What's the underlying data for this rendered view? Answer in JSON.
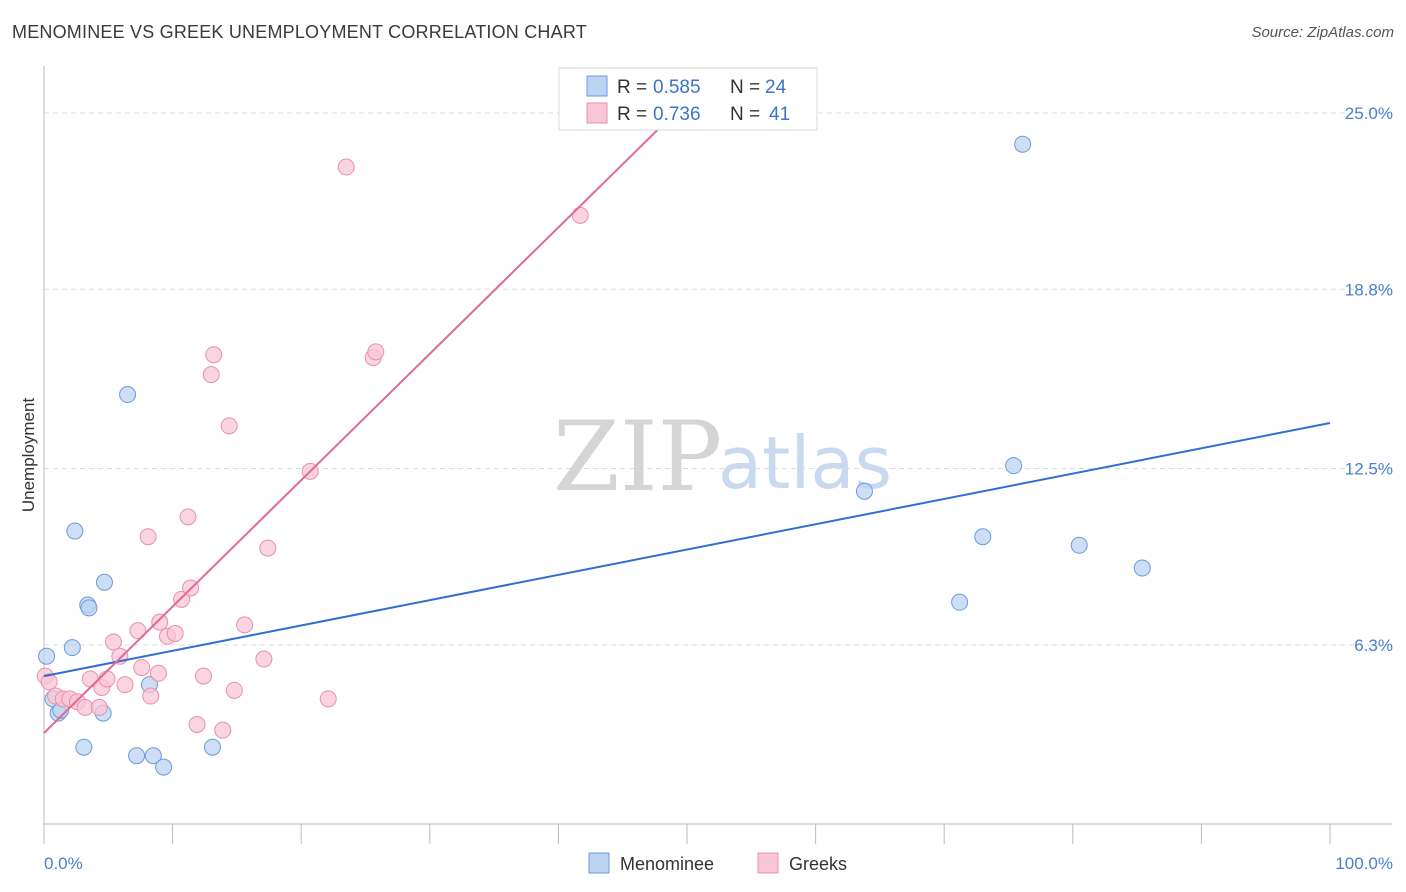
{
  "title": "MENOMINEE VS GREEK UNEMPLOYMENT CORRELATION CHART",
  "source": "Source: ZipAtlas.com",
  "watermark": {
    "zip": "ZIP",
    "atlas": "atlas"
  },
  "colors": {
    "blue_fill": "#bcd3f2",
    "blue_stroke": "#6a9be0",
    "blue_line": "#2f6fcf",
    "pink_fill": "#f8c6d5",
    "pink_stroke": "#e890ac",
    "pink_line": "#e06a92",
    "grid": "#dddddd",
    "tick_label": "#4a7fd0"
  },
  "legend": {
    "rows": [
      {
        "r_label": "R = ",
        "r_value": "0.585",
        "n_label": "N = ",
        "n_value": "24",
        "series": "blue"
      },
      {
        "r_label": "R = ",
        "r_value": "0.736",
        "n_label": "N = ",
        "n_value": "41",
        "series": "pink"
      }
    ]
  },
  "bottom_legend": [
    "Menominee",
    "Greeks"
  ],
  "chart_data": {
    "type": "scatter",
    "title": "MENOMINEE VS GREEK UNEMPLOYMENT CORRELATION CHART",
    "xlabel": "",
    "ylabel": "Unemployment",
    "xlim": [
      0,
      100
    ],
    "ylim": [
      0,
      26.3
    ],
    "x_tick_labels": [
      "0.0%",
      "100.0%"
    ],
    "y_ticks": [
      6.3,
      12.5,
      18.8,
      25.0
    ],
    "y_tick_labels": [
      "6.3%",
      "12.5%",
      "18.8%",
      "25.0%"
    ],
    "series": [
      {
        "name": "Menominee",
        "color": "blue",
        "points": [
          [
            0.2,
            5.9
          ],
          [
            0.7,
            4.4
          ],
          [
            1.1,
            3.9
          ],
          [
            1.3,
            4.0
          ],
          [
            2.2,
            6.2
          ],
          [
            2.4,
            10.3
          ],
          [
            3.1,
            2.7
          ],
          [
            3.4,
            7.7
          ],
          [
            3.5,
            7.6
          ],
          [
            4.6,
            3.9
          ],
          [
            4.7,
            8.5
          ],
          [
            6.5,
            15.1
          ],
          [
            7.2,
            2.4
          ],
          [
            8.2,
            4.9
          ],
          [
            8.5,
            2.4
          ],
          [
            9.3,
            2.0
          ],
          [
            13.1,
            2.7
          ],
          [
            63.8,
            11.7
          ],
          [
            71.2,
            7.8
          ],
          [
            73.0,
            10.1
          ],
          [
            75.4,
            12.6
          ],
          [
            76.1,
            23.9
          ],
          [
            80.5,
            9.8
          ],
          [
            85.4,
            9.0
          ]
        ],
        "trend": {
          "x0": 0.0,
          "y0": 5.2,
          "x1": 100.0,
          "y1": 14.1
        }
      },
      {
        "name": "Greeks",
        "color": "pink",
        "points": [
          [
            0.1,
            5.2
          ],
          [
            0.4,
            5.0
          ],
          [
            0.9,
            4.5
          ],
          [
            1.5,
            4.4
          ],
          [
            2.0,
            4.4
          ],
          [
            2.6,
            4.3
          ],
          [
            3.2,
            4.1
          ],
          [
            3.6,
            5.1
          ],
          [
            4.3,
            4.1
          ],
          [
            4.5,
            4.8
          ],
          [
            4.9,
            5.1
          ],
          [
            5.4,
            6.4
          ],
          [
            5.9,
            5.9
          ],
          [
            6.3,
            4.9
          ],
          [
            7.3,
            6.8
          ],
          [
            7.6,
            5.5
          ],
          [
            8.1,
            10.1
          ],
          [
            8.3,
            4.5
          ],
          [
            8.9,
            5.3
          ],
          [
            9.0,
            7.1
          ],
          [
            9.6,
            6.6
          ],
          [
            10.2,
            6.7
          ],
          [
            10.7,
            7.9
          ],
          [
            11.2,
            10.8
          ],
          [
            11.4,
            8.3
          ],
          [
            11.9,
            3.5
          ],
          [
            12.4,
            5.2
          ],
          [
            13.0,
            15.8
          ],
          [
            13.2,
            16.5
          ],
          [
            13.9,
            3.3
          ],
          [
            14.4,
            14.0
          ],
          [
            14.8,
            4.7
          ],
          [
            15.6,
            7.0
          ],
          [
            17.1,
            5.8
          ],
          [
            17.4,
            9.7
          ],
          [
            20.7,
            12.4
          ],
          [
            22.1,
            4.4
          ],
          [
            23.5,
            23.1
          ],
          [
            25.6,
            16.4
          ],
          [
            25.8,
            16.6
          ],
          [
            41.7,
            21.4
          ]
        ],
        "trend": {
          "x0": 0.0,
          "y0": 3.2,
          "x1": 49.5,
          "y1": 25.2
        }
      }
    ]
  }
}
